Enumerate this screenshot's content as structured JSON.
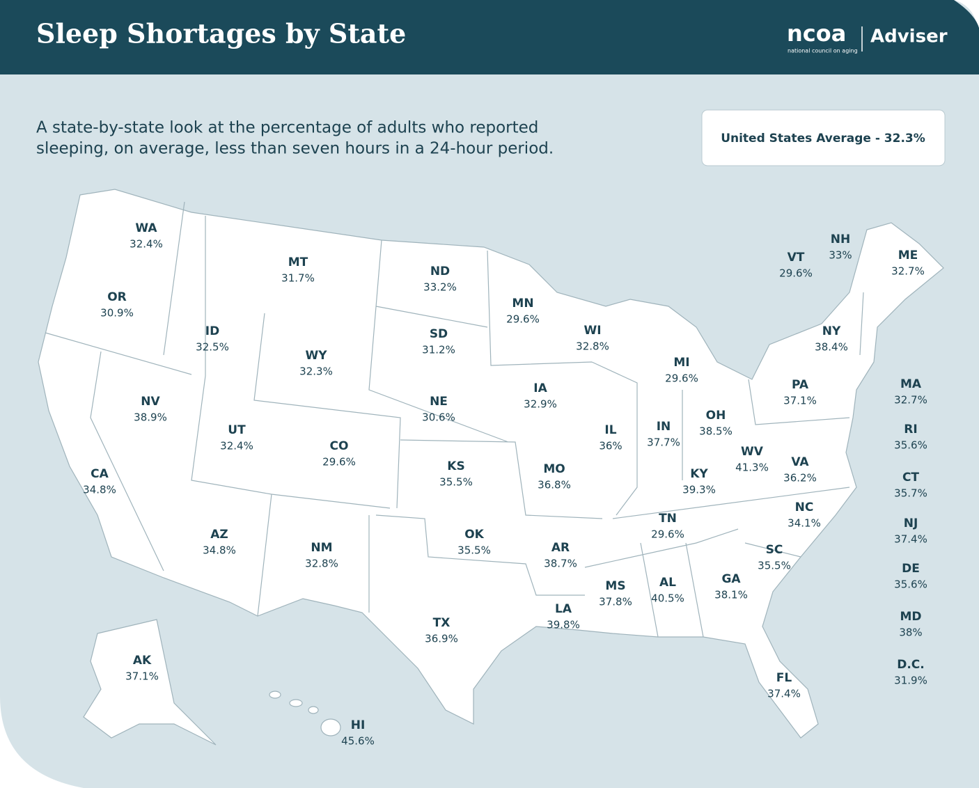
{
  "header": {
    "title": "Sleep Shortages by State",
    "logo": "ncoa",
    "logo_sub": "national council on aging",
    "brand": "Adviser"
  },
  "subtitle": [
    "A state-by-state look at the percentage of adults who reported",
    "sleeping, on average, less than seven hours in a 24-hour period."
  ],
  "average": "United States Average - 32.3%",
  "states": [
    {
      "code": "WA",
      "value": "32.4%"
    },
    {
      "code": "OR",
      "value": "30.9%"
    },
    {
      "code": "CA",
      "value": "34.8%"
    },
    {
      "code": "NV",
      "value": "38.9%"
    },
    {
      "code": "ID",
      "value": "32.5%"
    },
    {
      "code": "MT",
      "value": "31.7%"
    },
    {
      "code": "WY",
      "value": "32.3%"
    },
    {
      "code": "UT",
      "value": "32.4%"
    },
    {
      "code": "AZ",
      "value": "34.8%"
    },
    {
      "code": "CO",
      "value": "29.6%"
    },
    {
      "code": "NM",
      "value": "32.8%"
    },
    {
      "code": "ND",
      "value": "33.2%"
    },
    {
      "code": "SD",
      "value": "31.2%"
    },
    {
      "code": "NE",
      "value": "30.6%"
    },
    {
      "code": "KS",
      "value": "35.5%"
    },
    {
      "code": "OK",
      "value": "35.5%"
    },
    {
      "code": "TX",
      "value": "36.9%"
    },
    {
      "code": "MN",
      "value": "29.6%"
    },
    {
      "code": "IA",
      "value": "32.9%"
    },
    {
      "code": "MO",
      "value": "36.8%"
    },
    {
      "code": "AR",
      "value": "38.7%"
    },
    {
      "code": "LA",
      "value": "39.8%"
    },
    {
      "code": "WI",
      "value": "32.8%"
    },
    {
      "code": "IL",
      "value": "36%"
    },
    {
      "code": "MI",
      "value": "29.6%"
    },
    {
      "code": "IN",
      "value": "37.7%"
    },
    {
      "code": "OH",
      "value": "38.5%"
    },
    {
      "code": "KY",
      "value": "39.3%"
    },
    {
      "code": "TN",
      "value": "29.6%"
    },
    {
      "code": "MS",
      "value": "37.8%"
    },
    {
      "code": "AL",
      "value": "40.5%"
    },
    {
      "code": "GA",
      "value": "38.1%"
    },
    {
      "code": "FL",
      "value": "37.4%"
    },
    {
      "code": "SC",
      "value": "35.5%"
    },
    {
      "code": "NC",
      "value": "34.1%"
    },
    {
      "code": "VA",
      "value": "36.2%"
    },
    {
      "code": "WV",
      "value": "41.3%"
    },
    {
      "code": "PA",
      "value": "37.1%"
    },
    {
      "code": "NY",
      "value": "38.4%"
    },
    {
      "code": "VT",
      "value": "29.6%"
    },
    {
      "code": "NH",
      "value": "33%"
    },
    {
      "code": "ME",
      "value": "32.7%"
    },
    {
      "code": "MA",
      "value": "32.7%"
    },
    {
      "code": "RI",
      "value": "35.6%"
    },
    {
      "code": "CT",
      "value": "35.7%"
    },
    {
      "code": "NJ",
      "value": "37.4%"
    },
    {
      "code": "DE",
      "value": "35.6%"
    },
    {
      "code": "MD",
      "value": "38%"
    },
    {
      "code": "D.C.",
      "value": "31.9%"
    },
    {
      "code": "AK",
      "value": "37.1%"
    },
    {
      "code": "HI",
      "value": "45.6%"
    }
  ]
}
